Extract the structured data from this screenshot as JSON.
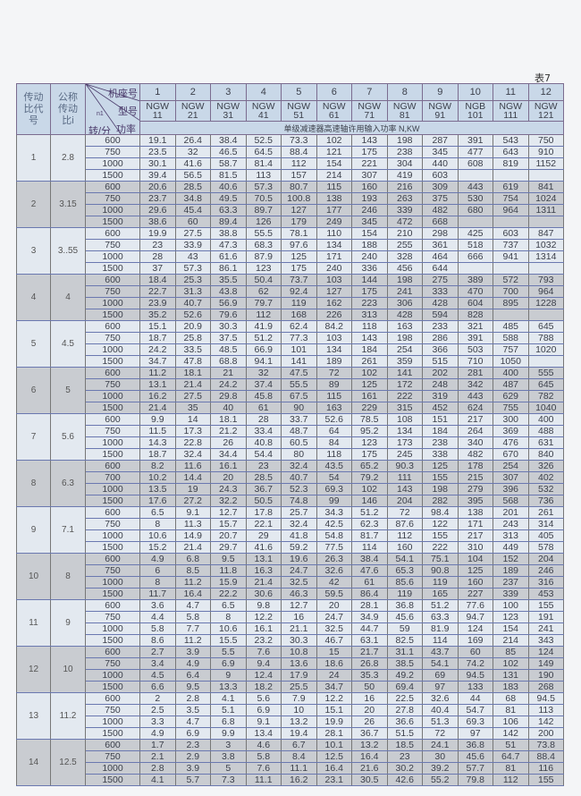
{
  "table_label": "表7",
  "header": {
    "col_code": "传动比代号",
    "col_ratio": "公称传动比i",
    "diag_frame": "机座号",
    "diag_model": "型号",
    "diag_n": "n1",
    "diag_speed": "转/分",
    "diag_power": "功率",
    "frame_numbers": [
      "1",
      "2",
      "3",
      "4",
      "5",
      "6",
      "7",
      "8",
      "9",
      "10",
      "11",
      "12"
    ],
    "models": [
      [
        "NGW",
        "11"
      ],
      [
        "NGW",
        "21"
      ],
      [
        "NGW",
        "31"
      ],
      [
        "NGW",
        "41"
      ],
      [
        "NGW",
        "51"
      ],
      [
        "NGW",
        "61"
      ],
      [
        "NGW",
        "71"
      ],
      [
        "NGW",
        "81"
      ],
      [
        "NGW",
        "91"
      ],
      [
        "NGB",
        "101"
      ],
      [
        "NGW",
        "111"
      ],
      [
        "NGW",
        "121"
      ]
    ],
    "power_caption": "单级减速器高速轴许用输入功率   N,KW"
  },
  "groups": [
    {
      "code": "1",
      "ratio": "2.8",
      "rows": [
        {
          "speed": "600",
          "values": [
            "19.1",
            "26.4",
            "38.4",
            "52.5",
            "73.3",
            "102",
            "143",
            "198",
            "287",
            "391",
            "543",
            "750"
          ]
        },
        {
          "speed": "750",
          "values": [
            "23.5",
            "32",
            "46.5",
            "64.5",
            "88.4",
            "121",
            "175",
            "238",
            "345",
            "477",
            "643",
            "910"
          ]
        },
        {
          "speed": "1000",
          "values": [
            "30.1",
            "41.6",
            "58.7",
            "81.4",
            "112",
            "154",
            "221",
            "304",
            "440",
            "608",
            "819",
            "1152"
          ]
        },
        {
          "speed": "1500",
          "values": [
            "39.4",
            "56.5",
            "81.5",
            "113",
            "157",
            "214",
            "307",
            "419",
            "603",
            "",
            "",
            ""
          ]
        }
      ]
    },
    {
      "code": "2",
      "ratio": "3.15",
      "rows": [
        {
          "speed": "600",
          "values": [
            "20.6",
            "28.5",
            "40.6",
            "57.3",
            "80.7",
            "115",
            "160",
            "216",
            "309",
            "443",
            "619",
            "841"
          ]
        },
        {
          "speed": "750",
          "values": [
            "23.7",
            "34.8",
            "49.5",
            "70.5",
            "100.8",
            "138",
            "193",
            "263",
            "375",
            "530",
            "754",
            "1024"
          ]
        },
        {
          "speed": "1000",
          "values": [
            "29.6",
            "45.4",
            "63.3",
            "89.7",
            "127",
            "177",
            "246",
            "339",
            "482",
            "680",
            "964",
            "1311"
          ]
        },
        {
          "speed": "1500",
          "values": [
            "38.6",
            "60",
            "89.4",
            "126",
            "179",
            "249",
            "345",
            "472",
            "668",
            "",
            "",
            ""
          ]
        }
      ]
    },
    {
      "code": "3",
      "ratio": "3..55",
      "rows": [
        {
          "speed": "600",
          "values": [
            "19.9",
            "27.5",
            "38.8",
            "55.5",
            "78.1",
            "110",
            "154",
            "210",
            "298",
            "425",
            "603",
            "847"
          ]
        },
        {
          "speed": "750",
          "values": [
            "23",
            "33.9",
            "47.3",
            "68.3",
            "97.6",
            "134",
            "188",
            "255",
            "361",
            "518",
            "737",
            "1032"
          ]
        },
        {
          "speed": "1000",
          "values": [
            "28",
            "43",
            "61.6",
            "87.9",
            "125",
            "171",
            "240",
            "328",
            "464",
            "666",
            "941",
            "1314"
          ]
        },
        {
          "speed": "1500",
          "values": [
            "37",
            "57.3",
            "86.1",
            "123",
            "175",
            "240",
            "336",
            "456",
            "644",
            "",
            "",
            ""
          ]
        }
      ]
    },
    {
      "code": "4",
      "ratio": "4",
      "rows": [
        {
          "speed": "600",
          "values": [
            "18.4",
            "25.3",
            "35.5",
            "50.4",
            "73.7",
            "103",
            "144",
            "198",
            "275",
            "389",
            "572",
            "793"
          ]
        },
        {
          "speed": "750",
          "values": [
            "22.7",
            "31.3",
            "43.8",
            "62",
            "92.4",
            "127",
            "175",
            "241",
            "333",
            "470",
            "700",
            "964"
          ]
        },
        {
          "speed": "1000",
          "values": [
            "23.9",
            "40.7",
            "56.9",
            "79.7",
            "119",
            "162",
            "223",
            "306",
            "428",
            "604",
            "895",
            "1228"
          ]
        },
        {
          "speed": "1500",
          "values": [
            "35.2",
            "52.6",
            "79.6",
            "112",
            "168",
            "226",
            "313",
            "428",
            "594",
            "828",
            "",
            ""
          ]
        }
      ]
    },
    {
      "code": "5",
      "ratio": "4.5",
      "rows": [
        {
          "speed": "600",
          "values": [
            "15.1",
            "20.9",
            "30.3",
            "41.9",
            "62.4",
            "84.2",
            "118",
            "163",
            "233",
            "321",
            "485",
            "645"
          ]
        },
        {
          "speed": "750",
          "values": [
            "18.7",
            "25.8",
            "37.5",
            "51.2",
            "77.3",
            "103",
            "143",
            "198",
            "286",
            "391",
            "588",
            "788"
          ]
        },
        {
          "speed": "1000",
          "values": [
            "24.2",
            "33.5",
            "48.5",
            "66.9",
            "101",
            "134",
            "184",
            "254",
            "366",
            "503",
            "757",
            "1020"
          ]
        },
        {
          "speed": "1500",
          "values": [
            "34.7",
            "47.8",
            "68.8",
            "94.1",
            "141",
            "189",
            "261",
            "359",
            "515",
            "710",
            "1050",
            ""
          ]
        }
      ]
    },
    {
      "code": "6",
      "ratio": "5",
      "rows": [
        {
          "speed": "600",
          "values": [
            "11.2",
            "18.1",
            "21",
            "32",
            "47.5",
            "72",
            "102",
            "141",
            "202",
            "281",
            "400",
            "555"
          ]
        },
        {
          "speed": "750",
          "values": [
            "13.1",
            "21.4",
            "24.2",
            "37.4",
            "55.5",
            "89",
            "125",
            "172",
            "248",
            "342",
            "487",
            "645"
          ]
        },
        {
          "speed": "1000",
          "values": [
            "16.2",
            "27.5",
            "29.8",
            "45.8",
            "67.5",
            "115",
            "161",
            "222",
            "319",
            "443",
            "629",
            "782"
          ]
        },
        {
          "speed": "1500",
          "values": [
            "21.4",
            "35",
            "40",
            "61",
            "90",
            "163",
            "229",
            "315",
            "452",
            "624",
            "755",
            "1040"
          ]
        }
      ]
    },
    {
      "code": "7",
      "ratio": "5.6",
      "rows": [
        {
          "speed": "600",
          "values": [
            "9.9",
            "14",
            "18.1",
            "28",
            "33.7",
            "52.6",
            "78.5",
            "108",
            "151",
            "217",
            "300",
            "400"
          ]
        },
        {
          "speed": "750",
          "values": [
            "11.5",
            "17.3",
            "21.2",
            "33.4",
            "48.7",
            "64",
            "95.2",
            "134",
            "184",
            "264",
            "369",
            "488"
          ]
        },
        {
          "speed": "1000",
          "values": [
            "14.3",
            "22.8",
            "26",
            "40.8",
            "60.5",
            "84",
            "123",
            "173",
            "238",
            "340",
            "476",
            "631"
          ]
        },
        {
          "speed": "1500",
          "values": [
            "18.7",
            "32.4",
            "34.4",
            "54.4",
            "80",
            "118",
            "175",
            "245",
            "338",
            "482",
            "670",
            "840"
          ]
        }
      ]
    },
    {
      "code": "8",
      "ratio": "6.3",
      "rows": [
        {
          "speed": "600",
          "values": [
            "8.2",
            "11.6",
            "16.1",
            "23",
            "32.4",
            "43.5",
            "65.2",
            "90.3",
            "125",
            "178",
            "254",
            "326"
          ]
        },
        {
          "speed": "700",
          "values": [
            "10.2",
            "14.4",
            "20",
            "28.5",
            "40.7",
            "54",
            "79.2",
            "111",
            "155",
            "215",
            "307",
            "402"
          ]
        },
        {
          "speed": "1000",
          "values": [
            "13.5",
            "19",
            "24.3",
            "36.7",
            "52.3",
            "69.3",
            "102",
            "143",
            "198",
            "279",
            "396",
            "532"
          ]
        },
        {
          "speed": "1500",
          "values": [
            "17.6",
            "27.2",
            "32.2",
            "50.5",
            "74.8",
            "99",
            "146",
            "204",
            "282",
            "395",
            "568",
            "736"
          ]
        }
      ]
    },
    {
      "code": "9",
      "ratio": "7.1",
      "rows": [
        {
          "speed": "600",
          "values": [
            "6.5",
            "9.1",
            "12.7",
            "17.8",
            "25.7",
            "34.3",
            "51.2",
            "72",
            "98.4",
            "138",
            "201",
            "261"
          ]
        },
        {
          "speed": "750",
          "values": [
            "8",
            "11.3",
            "15.7",
            "22.1",
            "32.4",
            "42.5",
            "62.3",
            "87.6",
            "122",
            "171",
            "243",
            "314"
          ]
        },
        {
          "speed": "1000",
          "values": [
            "10.6",
            "14.9",
            "20.7",
            "29",
            "41.8",
            "54.8",
            "81.7",
            "112",
            "155",
            "217",
            "313",
            "405"
          ]
        },
        {
          "speed": "1500",
          "values": [
            "15.2",
            "21.4",
            "29.7",
            "41.6",
            "59.2",
            "77.5",
            "114",
            "160",
            "222",
            "310",
            "449",
            "578"
          ]
        }
      ]
    },
    {
      "code": "10",
      "ratio": "8",
      "rows": [
        {
          "speed": "600",
          "values": [
            "4.9",
            "6.8",
            "9.5",
            "13.1",
            "19.6",
            "26.3",
            "38.4",
            "54.1",
            "75.1",
            "104",
            "152",
            "204"
          ]
        },
        {
          "speed": "750",
          "values": [
            "6",
            "8.5",
            "11.8",
            "16.3",
            "24.7",
            "32.6",
            "47.6",
            "65.3",
            "90.8",
            "125",
            "189",
            "246"
          ]
        },
        {
          "speed": "1000",
          "values": [
            "8",
            "11.2",
            "15.9",
            "21.4",
            "32.5",
            "42",
            "61",
            "85.6",
            "119",
            "160",
            "237",
            "316"
          ]
        },
        {
          "speed": "1500",
          "values": [
            "11.7",
            "16.4",
            "22.2",
            "30.6",
            "46.3",
            "59.5",
            "86.4",
            "119",
            "165",
            "227",
            "339",
            "453"
          ]
        }
      ]
    },
    {
      "code": "11",
      "ratio": "9",
      "rows": [
        {
          "speed": "600",
          "values": [
            "3.6",
            "4.7",
            "6.5",
            "9.8",
            "12.7",
            "20",
            "28.1",
            "36.8",
            "51.2",
            "77.6",
            "100",
            "155"
          ]
        },
        {
          "speed": "750",
          "values": [
            "4.4",
            "5.8",
            "8",
            "12.2",
            "16",
            "24.7",
            "34.9",
            "45.6",
            "63.3",
            "94.7",
            "123",
            "191"
          ]
        },
        {
          "speed": "1000",
          "values": [
            "5.8",
            "7.7",
            "10.6",
            "16.1",
            "21.1",
            "32.5",
            "44.7",
            "59",
            "81.9",
            "124",
            "154",
            "241"
          ]
        },
        {
          "speed": "1500",
          "values": [
            "8.6",
            "11.2",
            "15.5",
            "23.2",
            "30.3",
            "46.7",
            "63.1",
            "82.5",
            "114",
            "169",
            "214",
            "343"
          ]
        }
      ]
    },
    {
      "code": "12",
      "ratio": "10",
      "rows": [
        {
          "speed": "600",
          "values": [
            "2.7",
            "3.9",
            "5.5",
            "7.6",
            "10.8",
            "15",
            "21.7",
            "31.1",
            "43.7",
            "60",
            "85",
            "124"
          ]
        },
        {
          "speed": "750",
          "values": [
            "3.4",
            "4.9",
            "6.9",
            "9.4",
            "13.6",
            "18.6",
            "26.8",
            "38.5",
            "54.1",
            "74.2",
            "102",
            "149"
          ]
        },
        {
          "speed": "1000",
          "values": [
            "4.5",
            "6.4",
            "9",
            "12.4",
            "17.9",
            "24",
            "35.3",
            "49.2",
            "69",
            "94.5",
            "131",
            "190"
          ]
        },
        {
          "speed": "1500",
          "values": [
            "6.6",
            "9.5",
            "13.3",
            "18.2",
            "25.5",
            "34.7",
            "50",
            "69.4",
            "97",
            "133",
            "183",
            "268"
          ]
        }
      ]
    },
    {
      "code": "13",
      "ratio": "11.2",
      "rows": [
        {
          "speed": "600",
          "values": [
            "2",
            "2.8",
            "4.1",
            "5.6",
            "7.9",
            "12.2",
            "16",
            "22.5",
            "32.6",
            "44",
            "68",
            "94.5"
          ]
        },
        {
          "speed": "750",
          "values": [
            "2.5",
            "3.5",
            "5.1",
            "6.9",
            "10",
            "15.1",
            "20",
            "27.8",
            "40.4",
            "54.7",
            "81",
            "113"
          ]
        },
        {
          "speed": "1000",
          "values": [
            "3.3",
            "4.7",
            "6.8",
            "9.1",
            "13.2",
            "19.9",
            "26",
            "36.6",
            "51.3",
            "69.3",
            "106",
            "142"
          ]
        },
        {
          "speed": "1500",
          "values": [
            "4.9",
            "6.9",
            "9.9",
            "13.4",
            "19.4",
            "28.1",
            "36.7",
            "51.5",
            "72",
            "97",
            "142",
            "200"
          ]
        }
      ]
    },
    {
      "code": "14",
      "ratio": "12.5",
      "rows": [
        {
          "speed": "600",
          "values": [
            "1.7",
            "2.3",
            "3",
            "4.6",
            "6.7",
            "10.1",
            "13.2",
            "18.5",
            "24.1",
            "36.8",
            "51",
            "73.8"
          ]
        },
        {
          "speed": "750",
          "values": [
            "2.1",
            "2.9",
            "3.8",
            "5.8",
            "8.4",
            "12.5",
            "16.4",
            "23",
            "30",
            "45.6",
            "64.7",
            "88.4"
          ]
        },
        {
          "speed": "1000",
          "values": [
            "2.8",
            "3.9",
            "5",
            "7.6",
            "11.1",
            "16.4",
            "21.6",
            "30.2",
            "39.2",
            "57.7",
            "81",
            "116"
          ]
        },
        {
          "speed": "1500",
          "values": [
            "4.1",
            "5.7",
            "7.3",
            "11.1",
            "16.2",
            "23.1",
            "30.5",
            "42.6",
            "55.2",
            "79.8",
            "112",
            "155"
          ]
        }
      ]
    }
  ]
}
